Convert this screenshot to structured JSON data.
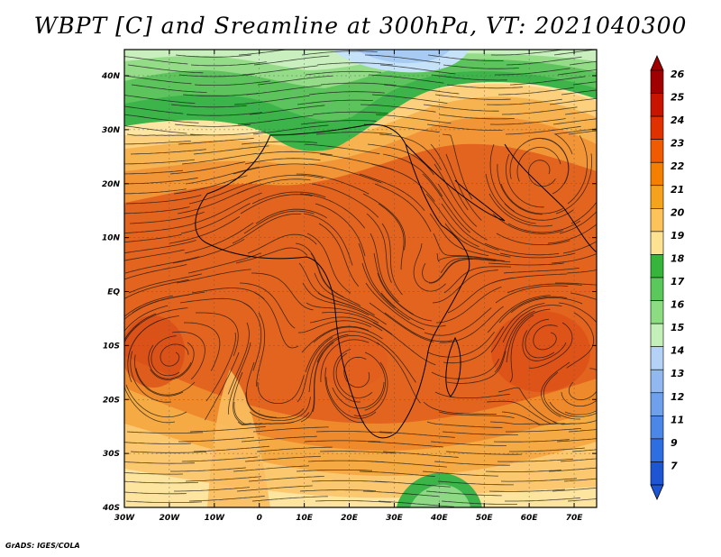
{
  "title": "WBPT [C] and Sreamline at 300hPa, VT: 2021040300",
  "credit": "GrADS: IGES/COLA",
  "map": {
    "lon_labels": [
      "30W",
      "20W",
      "10W",
      "0",
      "10E",
      "20E",
      "30E",
      "40E",
      "50E",
      "60E",
      "70E"
    ],
    "lat_labels": [
      "40N",
      "30N",
      "20N",
      "10N",
      "EQ",
      "10S",
      "20S",
      "30S",
      "40S"
    ]
  },
  "colorbar": {
    "labels": [
      "26",
      "25",
      "24",
      "23",
      "22",
      "21",
      "20",
      "19",
      "18",
      "17",
      "16",
      "15",
      "14",
      "13",
      "12",
      "11",
      "9",
      "7"
    ],
    "colors": [
      "#a00000",
      "#c81400",
      "#e03200",
      "#f05a00",
      "#f57f00",
      "#f7a21c",
      "#fbc35a",
      "#fde292",
      "#37b43c",
      "#5ac85a",
      "#8cdc82",
      "#c3f0b9",
      "#b4d2f5",
      "#91b9f0",
      "#6ea0eb",
      "#4b87e6",
      "#2d6ee1",
      "#1e55d2"
    ]
  }
}
